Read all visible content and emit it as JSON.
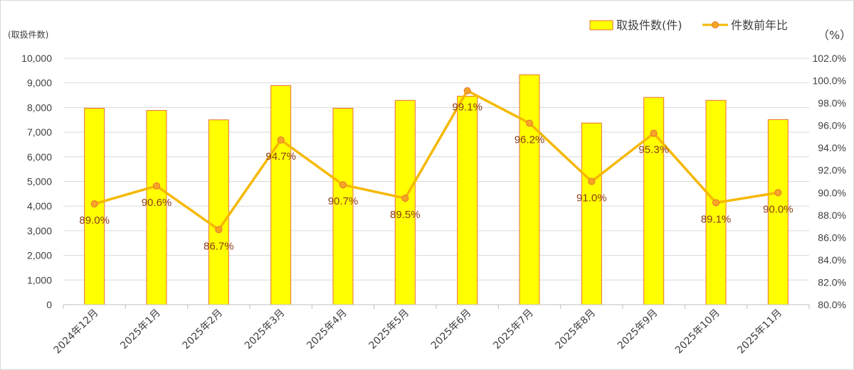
{
  "chart_data": {
    "type": "bar",
    "categories": [
      "2024年12月",
      "2025年1月",
      "2025年2月",
      "2025年3月",
      "2025年4月",
      "2025年5月",
      "2025年6月",
      "2025年7月",
      "2025年8月",
      "2025年9月",
      "2025年10月",
      "2025年11月"
    ],
    "series": [
      {
        "name": "取扱件数(件)",
        "type": "bar",
        "axis": "left",
        "color": "#ffff00",
        "edge_color": "#e8703a",
        "values": [
          7970,
          7880,
          7500,
          8890,
          7970,
          8290,
          8460,
          9330,
          7370,
          8410,
          8290,
          7510
        ]
      },
      {
        "name": "件数前年比",
        "type": "line",
        "axis": "right",
        "color": "#f5b800",
        "marker_color": "#f6a623",
        "values": [
          89.0,
          90.6,
          86.7,
          94.7,
          90.7,
          89.5,
          99.1,
          96.2,
          91.0,
          95.3,
          89.1,
          90.0
        ],
        "labels": [
          "89.0%",
          "90.6%",
          "86.7%",
          "94.7%",
          "90.7%",
          "89.5%",
          "99.1%",
          "96.2%",
          "91.0%",
          "95.3%",
          "89.1%",
          "90.0%"
        ]
      }
    ],
    "y_left": {
      "unit_label": "(取扱件数)",
      "ylim": [
        0,
        10000
      ],
      "ticks": [
        0,
        1000,
        2000,
        3000,
        4000,
        5000,
        6000,
        7000,
        8000,
        9000,
        10000
      ],
      "tick_labels": [
        "0",
        "1,000",
        "2,000",
        "3,000",
        "4,000",
        "5,000",
        "6,000",
        "7,000",
        "8,000",
        "9,000",
        "10,000"
      ]
    },
    "y_right": {
      "unit_label": "（%）",
      "ylim": [
        80,
        102
      ],
      "ticks": [
        80,
        82,
        84,
        86,
        88,
        90,
        92,
        94,
        96,
        98,
        100,
        102
      ],
      "tick_labels": [
        "80.0%",
        "82.0%",
        "84.0%",
        "86.0%",
        "88.0%",
        "90.0%",
        "92.0%",
        "94.0%",
        "96.0%",
        "98.0%",
        "100.0%",
        "102.0%"
      ]
    },
    "grid": true,
    "legend_position": "top-right"
  }
}
